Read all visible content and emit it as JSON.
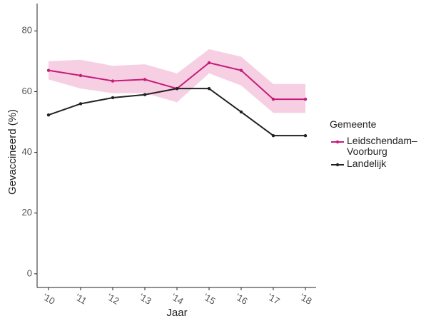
{
  "chart_data": {
    "type": "line",
    "x_label": "Jaar",
    "y_label": "Gevaccineerd (%)",
    "categories": [
      "'10",
      "'11",
      "'12",
      "'13",
      "'14",
      "'15",
      "'16",
      "'17",
      "'18"
    ],
    "ylim": [
      -4.5,
      89
    ],
    "yticks": [
      0,
      20,
      40,
      60,
      80
    ],
    "legend_title": "Gemeente",
    "legend": "right",
    "series": [
      {
        "name": "Leidschendam–Voorburg",
        "color": "#c51b7d",
        "band_color": "#f5c3dc",
        "values": [
          67,
          65.3,
          63.5,
          64,
          61,
          69.5,
          67,
          57.5,
          57.5
        ],
        "lower": [
          64,
          61,
          59.5,
          59.5,
          56.5,
          66,
          62,
          53,
          53
        ],
        "upper": [
          70,
          70.5,
          68.5,
          69,
          66,
          74,
          71.5,
          62.5,
          62.5
        ]
      },
      {
        "name": "Landelijk",
        "color": "#222222",
        "values": [
          52.3,
          56,
          58,
          59,
          61,
          61,
          53.3,
          45.5,
          45.5
        ]
      }
    ]
  }
}
